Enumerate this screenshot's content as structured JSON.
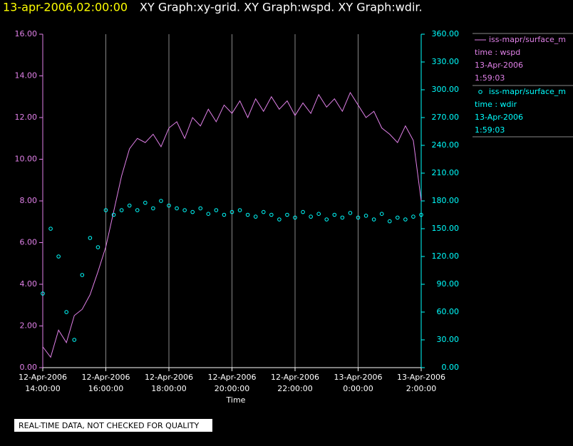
{
  "chart_data": {
    "type": "xy",
    "title_time": "13-apr-2006,02:00:00",
    "title": "XY Graph:xy-grid.  XY Graph:wspd.  XY Graph:wdir.",
    "xlabel": "Time",
    "footer": "REAL-TIME DATA, NOT CHECKED FOR QUALITY",
    "grid": true,
    "x": [
      "2006-04-12 14:00",
      "2006-04-12 14:15",
      "2006-04-12 14:30",
      "2006-04-12 14:45",
      "2006-04-12 15:00",
      "2006-04-12 15:15",
      "2006-04-12 15:30",
      "2006-04-12 15:45",
      "2006-04-12 16:00",
      "2006-04-12 16:15",
      "2006-04-12 16:30",
      "2006-04-12 16:45",
      "2006-04-12 17:00",
      "2006-04-12 17:15",
      "2006-04-12 17:30",
      "2006-04-12 17:45",
      "2006-04-12 18:00",
      "2006-04-12 18:15",
      "2006-04-12 18:30",
      "2006-04-12 18:45",
      "2006-04-12 19:00",
      "2006-04-12 19:15",
      "2006-04-12 19:30",
      "2006-04-12 19:45",
      "2006-04-12 20:00",
      "2006-04-12 20:15",
      "2006-04-12 20:30",
      "2006-04-12 20:45",
      "2006-04-12 21:00",
      "2006-04-12 21:15",
      "2006-04-12 21:30",
      "2006-04-12 21:45",
      "2006-04-12 22:00",
      "2006-04-12 22:15",
      "2006-04-12 22:30",
      "2006-04-12 22:45",
      "2006-04-12 23:00",
      "2006-04-12 23:15",
      "2006-04-12 23:30",
      "2006-04-12 23:45",
      "2006-04-13 00:00",
      "2006-04-13 00:15",
      "2006-04-13 00:30",
      "2006-04-13 00:45",
      "2006-04-13 01:00",
      "2006-04-13 01:15",
      "2006-04-13 01:30",
      "2006-04-13 01:45",
      "2006-04-13 02:00"
    ],
    "xlim": [
      "2006-04-12 14:00",
      "2006-04-13 02:00"
    ],
    "xticks": [
      {
        "value": "2006-04-12 14:00",
        "label": [
          "12-Apr-2006",
          "14:00:00"
        ]
      },
      {
        "value": "2006-04-12 16:00",
        "label": [
          "12-Apr-2006",
          "16:00:00"
        ]
      },
      {
        "value": "2006-04-12 18:00",
        "label": [
          "12-Apr-2006",
          "18:00:00"
        ]
      },
      {
        "value": "2006-04-12 20:00",
        "label": [
          "12-Apr-2006",
          "20:00:00"
        ]
      },
      {
        "value": "2006-04-12 22:00",
        "label": [
          "12-Apr-2006",
          "22:00:00"
        ]
      },
      {
        "value": "2006-04-13 00:00",
        "label": [
          "13-Apr-2006",
          "0:00:00"
        ]
      },
      {
        "value": "2006-04-13 02:00",
        "label": [
          "13-Apr-2006",
          "2:00:00"
        ]
      }
    ],
    "ylim": [
      0,
      16
    ],
    "yticks": [
      {
        "value": 0,
        "label": "0.00"
      },
      {
        "value": 2,
        "label": "2.00"
      },
      {
        "value": 4,
        "label": "4.00"
      },
      {
        "value": 6,
        "label": "6.00"
      },
      {
        "value": 8,
        "label": "8.00"
      },
      {
        "value": 10,
        "label": "10.00"
      },
      {
        "value": 12,
        "label": "12.00"
      },
      {
        "value": 14,
        "label": "14.00"
      },
      {
        "value": 16,
        "label": "16.00"
      }
    ],
    "y2lim": [
      0,
      360
    ],
    "y2ticks": [
      {
        "value": 0,
        "label": "0.00"
      },
      {
        "value": 30,
        "label": "30.00"
      },
      {
        "value": 60,
        "label": "60.00"
      },
      {
        "value": 90,
        "label": "90.00"
      },
      {
        "value": 120,
        "label": "120.00"
      },
      {
        "value": 150,
        "label": "150.00"
      },
      {
        "value": 180,
        "label": "180.00"
      },
      {
        "value": 210,
        "label": "210.00"
      },
      {
        "value": 240,
        "label": "240.00"
      },
      {
        "value": 270,
        "label": "270.00"
      },
      {
        "value": 300,
        "label": "300.00"
      },
      {
        "value": 330,
        "label": "330.00"
      },
      {
        "value": 360,
        "label": "360.00"
      }
    ],
    "series": [
      {
        "name": "iss-mapr/surface_m",
        "legend_lines": [
          "time : wspd",
          "13-Apr-2006",
          "1:59:03"
        ],
        "color": "#e080e8",
        "style": "line",
        "values": [
          1.0,
          0.5,
          1.8,
          1.2,
          2.5,
          2.8,
          3.5,
          4.6,
          5.8,
          7.5,
          9.2,
          10.5,
          11.0,
          10.8,
          11.2,
          10.6,
          11.5,
          11.8,
          11.0,
          12.0,
          11.6,
          12.4,
          11.8,
          12.6,
          12.2,
          12.8,
          12.0,
          12.9,
          12.3,
          13.0,
          12.4,
          12.8,
          12.1,
          12.7,
          12.2,
          13.1,
          12.5,
          12.9,
          12.3,
          13.2,
          12.6,
          12.0,
          12.3,
          11.5,
          11.2,
          10.8,
          11.6,
          10.9,
          8.0
        ]
      },
      {
        "name": "iss-mapr/surface_m",
        "legend_lines": [
          "time : wdir",
          "13-Apr-2006",
          "1:59:03"
        ],
        "color": "#00ffff",
        "style": "points",
        "axis": "y2",
        "values": [
          80,
          150,
          120,
          60,
          30,
          100,
          140,
          130,
          170,
          165,
          170,
          175,
          170,
          178,
          172,
          180,
          175,
          172,
          170,
          168,
          172,
          166,
          170,
          165,
          168,
          170,
          165,
          163,
          168,
          165,
          160,
          165,
          162,
          168,
          163,
          166,
          160,
          165,
          162,
          167,
          162,
          164,
          160,
          166,
          158,
          162,
          160,
          163,
          165
        ]
      }
    ]
  }
}
